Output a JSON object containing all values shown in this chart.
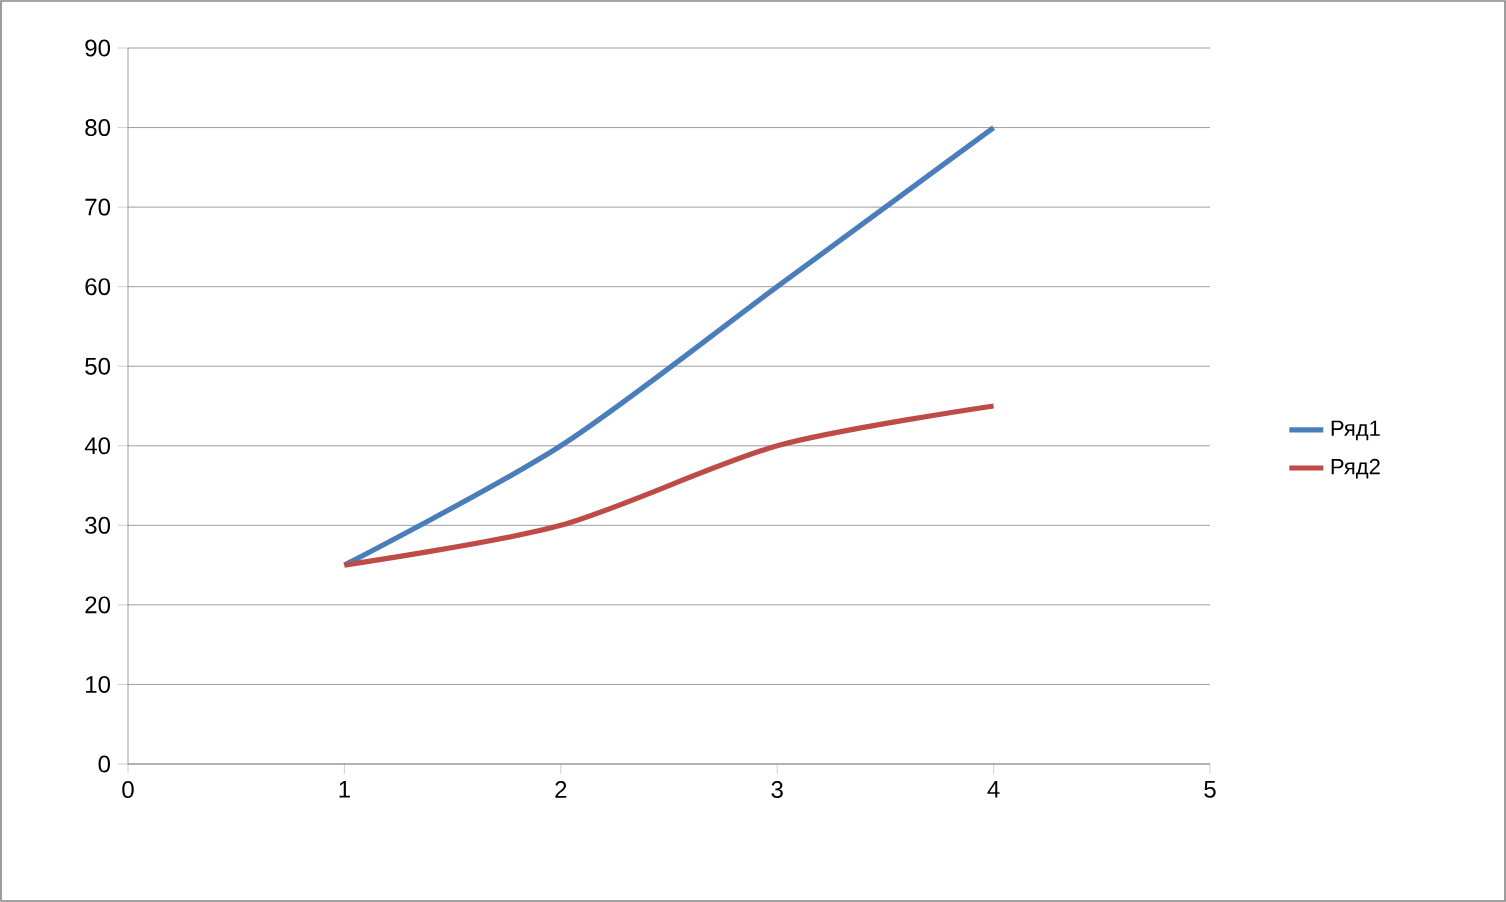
{
  "chart_data": {
    "type": "line",
    "x": [
      1,
      2,
      3,
      4
    ],
    "series": [
      {
        "name": "Ряд1",
        "color": "#4a7ebb",
        "values": [
          25,
          40,
          60,
          80
        ]
      },
      {
        "name": "Ряд2",
        "color": "#be4b48",
        "values": [
          25,
          30,
          40,
          45
        ]
      }
    ],
    "xlim": [
      0,
      5
    ],
    "xticks": [
      0,
      1,
      2,
      3,
      4,
      5
    ],
    "ylim": [
      0,
      90
    ],
    "yticks": [
      0,
      10,
      20,
      30,
      40,
      50,
      60,
      70,
      80,
      90
    ],
    "grid": "y",
    "legend": "right",
    "marker": "none",
    "line_style": "solid"
  }
}
